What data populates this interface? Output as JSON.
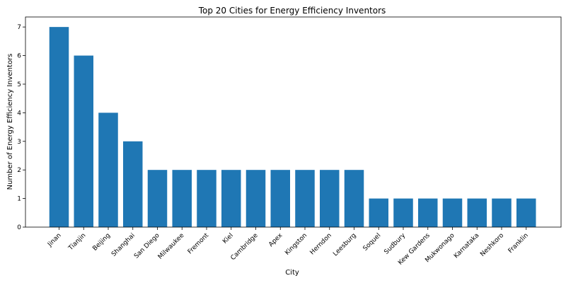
{
  "chart_data": {
    "type": "bar",
    "title": "Top 20 Cities for Energy Efficiency Inventors",
    "xlabel": "City",
    "ylabel": "Number of Energy Efficiency Inventors",
    "categories": [
      "Jinan",
      "Tianjin",
      "Beijing",
      "Shanghai",
      "San Diego",
      "Milwaukee",
      "Fremont",
      "Kiel",
      "Cambridge",
      "Apex",
      "Kingston",
      "Herndon",
      "Leesburg",
      "Soquel",
      "Sudbury",
      "Kew Gardens",
      "Mukwonago",
      "Karnataka",
      "Neshkoro",
      "Franklin"
    ],
    "values": [
      7,
      6,
      4,
      3,
      2,
      2,
      2,
      2,
      2,
      2,
      2,
      2,
      2,
      1,
      1,
      1,
      1,
      1,
      1,
      1
    ],
    "ylim": [
      0,
      7.35
    ],
    "yticks": [
      0,
      1,
      2,
      3,
      4,
      5,
      6,
      7
    ],
    "bar_color": "#1f77b4",
    "grid": false,
    "legend": "none"
  }
}
